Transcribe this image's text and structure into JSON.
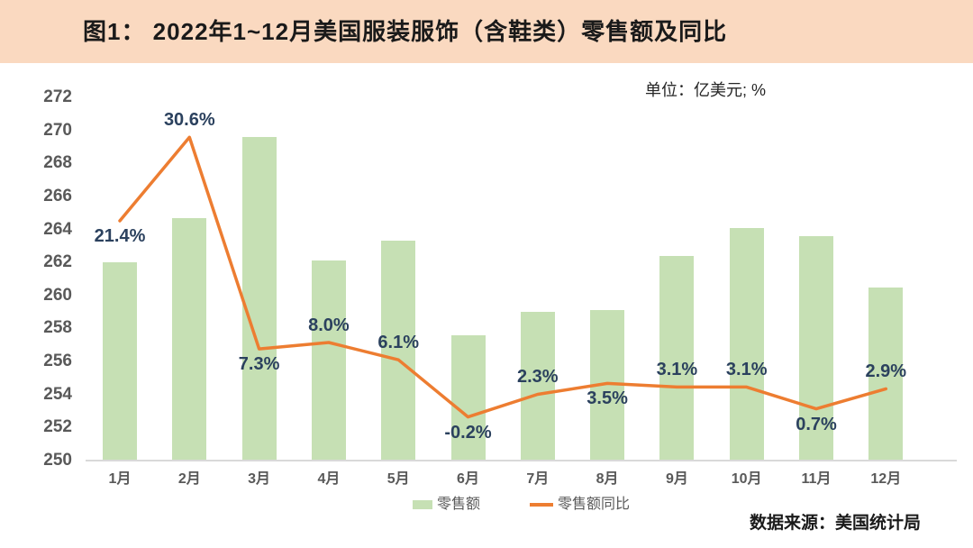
{
  "header": {
    "title": "图1： 2022年1~12月美国服装服饰（含鞋类）零售额及同比",
    "band_color": "#FAD9C0"
  },
  "unit_label": "单位：亿美元; %",
  "source": "数据来源：美国统计局",
  "legend": [
    {
      "label": "零售额",
      "type": "bar",
      "color": "#C6E0B4"
    },
    {
      "label": "零售额同比",
      "type": "line",
      "color": "#ED7D31"
    }
  ],
  "chart_data": {
    "type": "combo",
    "title": "2022年1~12月美国服装服饰（含鞋类）零售额及同比",
    "categories": [
      "1月",
      "2月",
      "3月",
      "4月",
      "5月",
      "6月",
      "7月",
      "8月",
      "9月",
      "10月",
      "11月",
      "12月"
    ],
    "series": [
      {
        "name": "零售额",
        "type": "bar",
        "axis": "left",
        "unit": "亿美元",
        "color": "#C6E0B4",
        "values": [
          262.0,
          264.7,
          269.6,
          262.1,
          263.3,
          257.6,
          259.0,
          259.1,
          262.4,
          264.1,
          263.6,
          260.5
        ]
      },
      {
        "name": "零售额同比",
        "type": "line",
        "axis": "right_hidden",
        "unit": "%",
        "color": "#ED7D31",
        "values": [
          21.4,
          30.6,
          7.3,
          8.0,
          6.1,
          -0.2,
          2.3,
          3.5,
          3.1,
          3.1,
          0.7,
          2.9
        ],
        "labels": [
          "21.4%",
          "30.6%",
          "7.3%",
          "8.0%",
          "6.1%",
          "-0.2%",
          "2.3%",
          "3.5%",
          "3.1%",
          "3.1%",
          "0.7%",
          "2.9%"
        ],
        "label_side": [
          "below",
          "above",
          "below",
          "above",
          "above",
          "below",
          "above",
          "below",
          "above",
          "above",
          "below",
          "above"
        ]
      }
    ],
    "left_axis": {
      "min": 250,
      "max": 272,
      "step": 2,
      "ticks": [
        250,
        252,
        254,
        256,
        258,
        260,
        262,
        264,
        266,
        268,
        270,
        272
      ]
    },
    "right_axis_hidden": {
      "min": -5,
      "max": 35,
      "visible": false
    },
    "grid": false,
    "legend_position": "bottom-center",
    "colors": {
      "bar": "#C6E0B4",
      "line": "#ED7D31",
      "point_label": "#2B415E",
      "axis_text": "#595959",
      "baseline": "#D9D9D9"
    }
  }
}
